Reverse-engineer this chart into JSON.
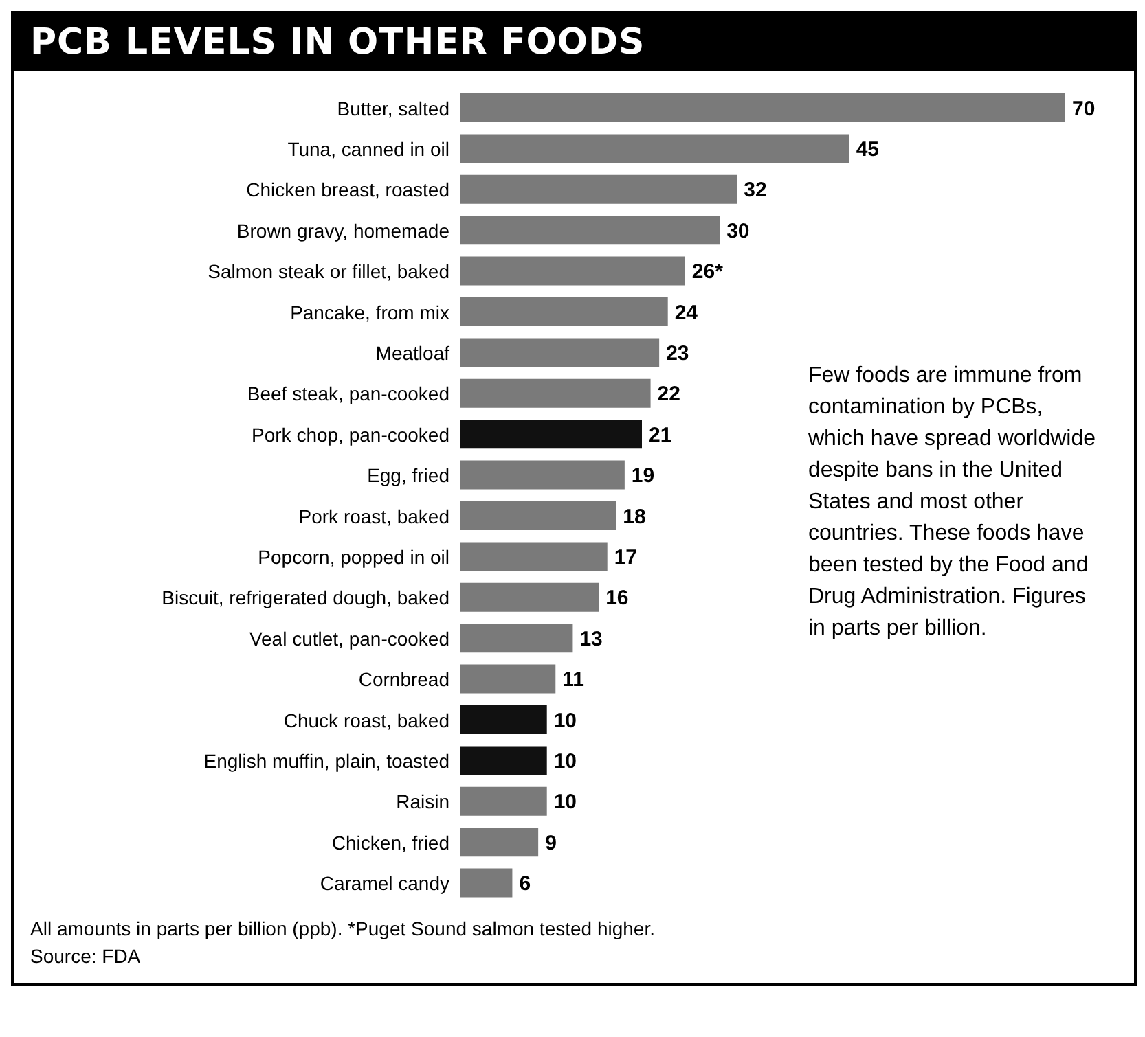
{
  "chart_data": {
    "type": "bar",
    "orientation": "horizontal",
    "title": "PCB LEVELS IN OTHER FOODS",
    "categories": [
      "Butter, salted",
      "Tuna, canned in oil",
      "Chicken breast, roasted",
      "Brown gravy, homemade",
      "Salmon steak or fillet, baked",
      "Pancake, from mix",
      "Meatloaf",
      "Beef steak, pan-cooked",
      "Pork chop, pan-cooked",
      "Egg, fried",
      "Pork roast, baked",
      "Popcorn, popped in oil",
      "Biscuit, refrigerated dough, baked",
      "Veal cutlet, pan-cooked",
      "Cornbread",
      "Chuck roast, baked",
      "English muffin, plain, toasted",
      "Raisin",
      "Chicken, fried",
      "Caramel candy"
    ],
    "values": [
      70,
      45,
      32,
      30,
      26,
      24,
      23,
      22,
      21,
      19,
      18,
      17,
      16,
      13,
      11,
      10,
      10,
      10,
      9,
      6
    ],
    "value_labels": [
      "70",
      "45",
      "32",
      "30",
      "26*",
      "24",
      "23",
      "22",
      "21",
      "19",
      "18",
      "17",
      "16",
      "13",
      "11",
      "10",
      "10",
      "10",
      "9",
      "6"
    ],
    "colors": [
      "#7a7a7a",
      "#7a7a7a",
      "#7a7a7a",
      "#7a7a7a",
      "#7a7a7a",
      "#7a7a7a",
      "#7a7a7a",
      "#7a7a7a",
      "#111111",
      "#7a7a7a",
      "#7a7a7a",
      "#7a7a7a",
      "#7a7a7a",
      "#7a7a7a",
      "#7a7a7a",
      "#111111",
      "#111111",
      "#7a7a7a",
      "#7a7a7a",
      "#7a7a7a"
    ],
    "annotations": [
      "Few foods are immune from contamination by PCBs, which have spread worldwide despite bans in the United States and most other countries. These foods have been tested by the Food and Drug Administration. Figures in parts per billion.",
      "All amounts in parts per billion (ppb). *Puget Sound salmon tested higher.",
      "Source: FDA"
    ]
  }
}
